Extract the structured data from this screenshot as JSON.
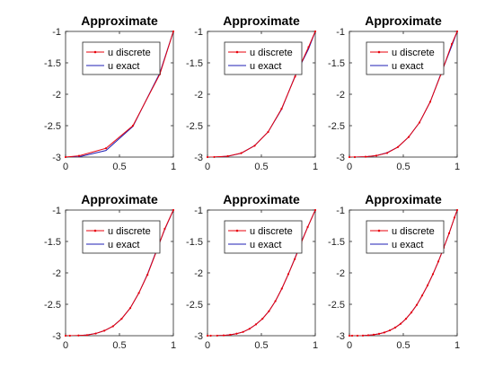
{
  "colors": {
    "background": "#ffffff",
    "axes": "#262626",
    "u_discrete": "#e8000b",
    "u_exact": "#1f1fb4"
  },
  "chart_data": [
    {
      "type": "line",
      "title": "Approximate",
      "xlim": [
        0,
        1
      ],
      "ylim": [
        -3,
        -1
      ],
      "xticks": [
        0,
        0.5,
        1
      ],
      "yticks": [
        -3,
        -2.5,
        -2,
        -1.5,
        -1
      ],
      "xtick_labels": [
        "0",
        "0.5",
        "1"
      ],
      "ytick_labels": [
        "-3",
        "-2.5",
        "-2",
        "-1.5",
        "-1"
      ],
      "legend": "top-center",
      "grid": false,
      "series": [
        {
          "name": "u discrete",
          "style": "line-with-dot-markers",
          "x": [
            0,
            0.125,
            0.375,
            0.625,
            0.875,
            1
          ],
          "y": [
            -3.0,
            -2.98,
            -2.86,
            -2.5,
            -1.68,
            -1.0
          ]
        },
        {
          "name": "u exact",
          "style": "line",
          "x": [
            0,
            0.125,
            0.375,
            0.625,
            0.875,
            1
          ],
          "y": [
            -3.0,
            -2.996,
            -2.895,
            -2.512,
            -1.66,
            -1.0
          ]
        }
      ]
    },
    {
      "type": "line",
      "title": "Approximate",
      "xlim": [
        0,
        1
      ],
      "ylim": [
        -3,
        -1
      ],
      "xticks": [
        0,
        0.5,
        1
      ],
      "yticks": [
        -3,
        -2.5,
        -2,
        -1.5,
        -1
      ],
      "xtick_labels": [
        "0",
        "0.5",
        "1"
      ],
      "ytick_labels": [
        "-3",
        "-2.5",
        "-2",
        "-1.5",
        "-1"
      ],
      "legend": "top-center",
      "grid": false,
      "series": [
        {
          "name": "u discrete",
          "style": "line-with-dot-markers",
          "x": [
            0,
            0.0625,
            0.1875,
            0.3125,
            0.4375,
            0.5625,
            0.6875,
            0.8125,
            0.9375,
            1
          ],
          "y": [
            -3.0,
            -2.999,
            -2.985,
            -2.937,
            -2.82,
            -2.6,
            -2.23,
            -1.72,
            -1.25,
            -1.0
          ]
        },
        {
          "name": "u exact",
          "style": "line",
          "x": [
            0,
            0.0625,
            0.1875,
            0.3125,
            0.4375,
            0.5625,
            0.6875,
            0.8125,
            0.9375,
            1
          ],
          "y": [
            -3.0,
            -3.0,
            -2.987,
            -2.939,
            -2.817,
            -2.6,
            -2.24,
            -1.71,
            -1.28,
            -1.0
          ]
        }
      ]
    },
    {
      "type": "line",
      "title": "Approximate",
      "xlim": [
        0,
        1
      ],
      "ylim": [
        -3,
        -1
      ],
      "xticks": [
        0,
        0.5,
        1
      ],
      "yticks": [
        -3,
        -2.5,
        -2,
        -1.5,
        -1
      ],
      "xtick_labels": [
        "0",
        "0.5",
        "1"
      ],
      "ytick_labels": [
        "-3",
        "-2.5",
        "-2",
        "-1.5",
        "-1"
      ],
      "legend": "top-center",
      "grid": false,
      "series": [
        {
          "name": "u discrete",
          "style": "line-with-dot-markers",
          "x": [
            0,
            0.05,
            0.15,
            0.25,
            0.35,
            0.45,
            0.55,
            0.65,
            0.75,
            0.85,
            0.95,
            1
          ],
          "y": [
            -3.0,
            -3.0,
            -2.995,
            -2.977,
            -2.935,
            -2.84,
            -2.68,
            -2.45,
            -2.12,
            -1.68,
            -1.2,
            -1.0
          ]
        },
        {
          "name": "u exact",
          "style": "line",
          "x": [
            0,
            0.05,
            0.15,
            0.25,
            0.35,
            0.45,
            0.55,
            0.65,
            0.75,
            0.85,
            0.95,
            1
          ],
          "y": [
            -3.0,
            -3.0,
            -2.994,
            -2.977,
            -2.93,
            -2.84,
            -2.68,
            -2.45,
            -2.12,
            -1.67,
            -1.23,
            -1.0
          ]
        }
      ]
    },
    {
      "type": "line",
      "title": "Approximate",
      "xlim": [
        0,
        1
      ],
      "ylim": [
        -3,
        -1
      ],
      "xticks": [
        0,
        0.5,
        1
      ],
      "yticks": [
        -3,
        -2.5,
        -2,
        -1.5,
        -1
      ],
      "xtick_labels": [
        "0",
        "0.5",
        "1"
      ],
      "ytick_labels": [
        "-3",
        "-2.5",
        "-2",
        "-1.5",
        "-1"
      ],
      "legend": "top-center",
      "grid": false,
      "series": [
        {
          "name": "u discrete",
          "style": "line-with-dot-markers",
          "x": [
            0,
            0.04,
            0.12,
            0.2,
            0.28,
            0.36,
            0.44,
            0.52,
            0.6,
            0.68,
            0.76,
            0.84,
            0.92,
            1
          ],
          "y": [
            -3.0,
            -3.0,
            -2.996,
            -2.99,
            -2.965,
            -2.92,
            -2.85,
            -2.73,
            -2.56,
            -2.32,
            -2.03,
            -1.67,
            -1.3,
            -1.0
          ]
        },
        {
          "name": "u exact",
          "style": "line",
          "x": [
            0,
            0.04,
            0.12,
            0.2,
            0.28,
            0.36,
            0.44,
            0.52,
            0.6,
            0.68,
            0.76,
            0.84,
            0.92,
            1
          ],
          "y": [
            -3.0,
            -3.0,
            -2.998,
            -2.988,
            -2.965,
            -2.92,
            -2.85,
            -2.73,
            -2.56,
            -2.32,
            -2.02,
            -1.66,
            -1.31,
            -1.0
          ]
        }
      ]
    },
    {
      "type": "line",
      "title": "Approximate",
      "xlim": [
        0,
        1
      ],
      "ylim": [
        -3,
        -1
      ],
      "xticks": [
        0,
        0.5,
        1
      ],
      "yticks": [
        -3,
        -2.5,
        -2,
        -1.5,
        -1
      ],
      "xtick_labels": [
        "0",
        "0.5",
        "1"
      ],
      "ytick_labels": [
        "-3",
        "-2.5",
        "-2",
        "-1.5",
        "-1"
      ],
      "legend": "top-center",
      "grid": false,
      "series": [
        {
          "name": "u discrete",
          "style": "line-with-dot-markers",
          "x": [
            0,
            0.03,
            0.09,
            0.15,
            0.21,
            0.27,
            0.33,
            0.39,
            0.45,
            0.51,
            0.57,
            0.63,
            0.69,
            0.75,
            0.81,
            0.87,
            0.93,
            1
          ],
          "y": [
            -3.0,
            -3.0,
            -2.999,
            -2.995,
            -2.985,
            -2.968,
            -2.94,
            -2.89,
            -2.82,
            -2.73,
            -2.61,
            -2.45,
            -2.25,
            -2.02,
            -1.78,
            -1.52,
            -1.27,
            -1.0
          ]
        },
        {
          "name": "u exact",
          "style": "line",
          "x": [
            0,
            0.03,
            0.09,
            0.15,
            0.21,
            0.27,
            0.33,
            0.39,
            0.45,
            0.51,
            0.57,
            0.63,
            0.69,
            0.75,
            0.81,
            0.87,
            0.93,
            1
          ],
          "y": [
            -3.0,
            -3.0,
            -2.999,
            -2.995,
            -2.985,
            -2.968,
            -2.94,
            -2.89,
            -2.82,
            -2.73,
            -2.61,
            -2.45,
            -2.25,
            -2.02,
            -1.77,
            -1.51,
            -1.27,
            -1.0
          ]
        }
      ]
    },
    {
      "type": "line",
      "title": "Approximate",
      "xlim": [
        0,
        1
      ],
      "ylim": [
        -3,
        -1
      ],
      "xticks": [
        0,
        0.5,
        1
      ],
      "yticks": [
        -3,
        -2.5,
        -2,
        -1.5,
        -1
      ],
      "xtick_labels": [
        "0",
        "0.5",
        "1"
      ],
      "ytick_labels": [
        "-3",
        "-2.5",
        "-2",
        "-1.5",
        "-1"
      ],
      "legend": "top-center",
      "grid": false,
      "series": [
        {
          "name": "u discrete",
          "style": "line-with-dot-markers",
          "x": [
            0,
            0.025,
            0.075,
            0.125,
            0.175,
            0.225,
            0.275,
            0.325,
            0.375,
            0.425,
            0.475,
            0.525,
            0.575,
            0.625,
            0.675,
            0.725,
            0.775,
            0.825,
            0.875,
            0.925,
            0.975,
            1
          ],
          "y": [
            -3.0,
            -3.0,
            -3.0,
            -2.998,
            -2.993,
            -2.984,
            -2.97,
            -2.948,
            -2.915,
            -2.87,
            -2.81,
            -2.73,
            -2.63,
            -2.51,
            -2.36,
            -2.2,
            -2.02,
            -1.82,
            -1.6,
            -1.37,
            -1.12,
            -1.0
          ]
        },
        {
          "name": "u exact",
          "style": "line",
          "x": [
            0,
            0.025,
            0.075,
            0.125,
            0.175,
            0.225,
            0.275,
            0.325,
            0.375,
            0.425,
            0.475,
            0.525,
            0.575,
            0.625,
            0.675,
            0.725,
            0.775,
            0.825,
            0.875,
            0.925,
            0.975,
            1
          ],
          "y": [
            -3.0,
            -3.0,
            -3.0,
            -2.998,
            -2.993,
            -2.984,
            -2.97,
            -2.948,
            -2.915,
            -2.87,
            -2.81,
            -2.73,
            -2.63,
            -2.51,
            -2.36,
            -2.2,
            -2.02,
            -1.82,
            -1.6,
            -1.37,
            -1.12,
            -1.0
          ]
        }
      ]
    }
  ]
}
